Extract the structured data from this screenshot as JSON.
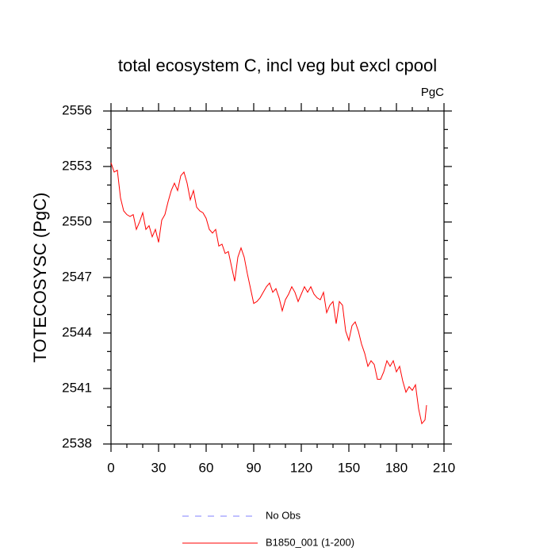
{
  "chart_data": {
    "type": "line",
    "title": "total ecosystem C, incl veg but excl cpool",
    "units_label": "PgC",
    "y_label": "TOTECOSYSC  (PgC)",
    "x": [
      0,
      2,
      4,
      6,
      8,
      10,
      12,
      14,
      16,
      18,
      20,
      22,
      24,
      26,
      28,
      30,
      32,
      34,
      36,
      38,
      40,
      42,
      44,
      46,
      48,
      50,
      52,
      54,
      56,
      58,
      60,
      62,
      64,
      66,
      68,
      70,
      72,
      74,
      76,
      78,
      80,
      82,
      84,
      86,
      88,
      90,
      92,
      94,
      96,
      98,
      100,
      102,
      104,
      106,
      108,
      110,
      112,
      114,
      116,
      118,
      120,
      122,
      124,
      126,
      128,
      130,
      132,
      134,
      136,
      138,
      140,
      142,
      144,
      146,
      148,
      150,
      152,
      154,
      156,
      158,
      160,
      162,
      164,
      166,
      168,
      170,
      172,
      174,
      176,
      178,
      180,
      182,
      184,
      186,
      188,
      190,
      192,
      194,
      196,
      198,
      199
    ],
    "series": [
      {
        "name": "B1850_001 (1-200)",
        "color": "#ff0000",
        "values": [
          2553.2,
          2552.7,
          2552.8,
          2551.3,
          2550.6,
          2550.4,
          2550.3,
          2550.4,
          2549.6,
          2550.0,
          2550.5,
          2549.6,
          2549.8,
          2549.2,
          2549.6,
          2548.9,
          2550.1,
          2550.4,
          2551.1,
          2551.7,
          2552.1,
          2551.7,
          2552.5,
          2552.7,
          2552.1,
          2551.2,
          2551.7,
          2550.8,
          2550.6,
          2550.5,
          2550.2,
          2549.6,
          2549.4,
          2549.6,
          2548.7,
          2548.8,
          2548.3,
          2548.4,
          2547.6,
          2546.8,
          2548.1,
          2548.6,
          2548.1,
          2547.2,
          2546.4,
          2545.6,
          2545.7,
          2545.9,
          2546.2,
          2546.5,
          2546.7,
          2546.2,
          2546.4,
          2545.9,
          2545.2,
          2545.8,
          2546.1,
          2546.5,
          2546.2,
          2545.7,
          2546.1,
          2546.5,
          2546.2,
          2546.5,
          2546.1,
          2545.9,
          2545.8,
          2546.2,
          2545.1,
          2545.5,
          2545.7,
          2544.5,
          2545.7,
          2545.5,
          2544.1,
          2543.6,
          2544.4,
          2544.6,
          2544.1,
          2543.4,
          2542.9,
          2542.2,
          2542.5,
          2542.3,
          2541.5,
          2541.5,
          2541.9,
          2542.5,
          2542.2,
          2542.5,
          2541.9,
          2542.2,
          2541.4,
          2540.8,
          2541.1,
          2540.9,
          2541.2,
          2539.9,
          2539.1,
          2539.3,
          2540.1
        ]
      }
    ],
    "legend_extra": [
      {
        "name": "No Obs",
        "color": "#8080ff",
        "dash": "8,8"
      }
    ],
    "xlim": [
      0,
      210
    ],
    "xticks": [
      0,
      30,
      60,
      90,
      120,
      150,
      180,
      210
    ],
    "ylim": [
      2538,
      2556
    ],
    "yticks": [
      2538,
      2541,
      2544,
      2547,
      2550,
      2553,
      2556
    ]
  }
}
